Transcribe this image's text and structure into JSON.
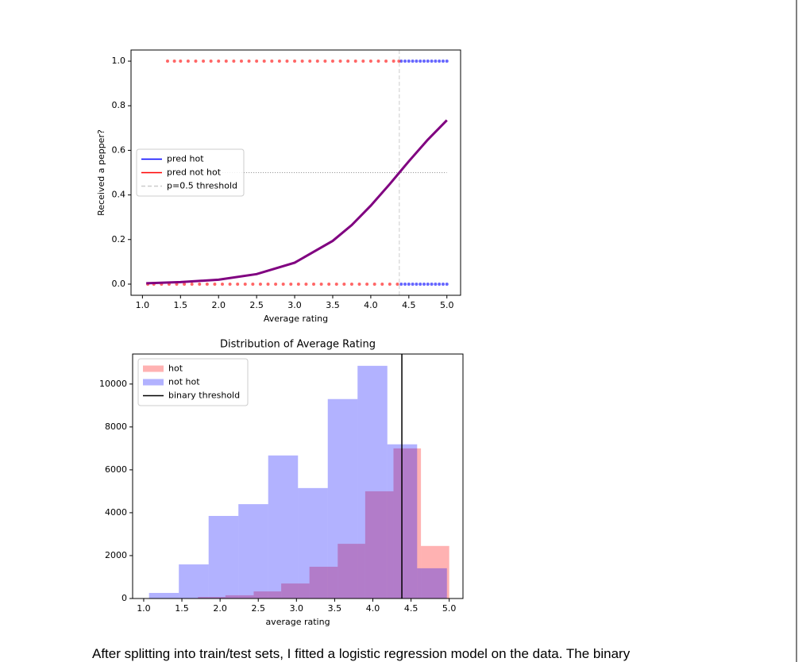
{
  "chart_data": [
    {
      "type": "scatter",
      "xlabel": "Average rating",
      "ylabel": "Received a pepper?",
      "xlim": [
        0.85,
        5.18
      ],
      "ylim": [
        -0.05,
        1.05
      ],
      "xticks": [
        {
          "value": 1,
          "label": "1.0"
        },
        1.5,
        {
          "value": 2,
          "label": "2.0"
        },
        2.5,
        {
          "value": 3,
          "label": "3.0"
        },
        3.5,
        {
          "value": 4,
          "label": "4.0"
        },
        4.5,
        {
          "value": 5,
          "label": "5.0"
        }
      ],
      "yticks": [
        {
          "value": 0,
          "label": "0.0"
        },
        0.2,
        0.4,
        0.6,
        0.8,
        {
          "value": 1,
          "label": "1.0"
        }
      ],
      "legend": "center left",
      "series": [
        {
          "name": "pred hot",
          "color": "#0000ff",
          "x": [
            4.4,
            4.45,
            4.5,
            4.55,
            4.6,
            4.65,
            4.7,
            4.75,
            4.8,
            4.85,
            4.9,
            4.95,
            5.0,
            4.4,
            4.45,
            4.5,
            4.55,
            4.6,
            4.65,
            4.7,
            4.75,
            4.8,
            4.85,
            4.9,
            4.95,
            5.0
          ],
          "values": [
            1,
            1,
            1,
            1,
            1,
            1,
            1,
            1,
            1,
            1,
            1,
            1,
            1,
            0,
            0,
            0,
            0,
            0,
            0,
            0,
            0,
            0,
            0,
            0,
            0,
            0
          ]
        },
        {
          "name": "pred not hot",
          "color": "#ff0000",
          "x": [
            1.33,
            1.42,
            1.5,
            1.6,
            1.7,
            1.8,
            1.9,
            2.0,
            2.1,
            2.2,
            2.3,
            2.4,
            2.5,
            2.6,
            2.7,
            2.8,
            2.9,
            3.0,
            3.1,
            3.2,
            3.3,
            3.4,
            3.5,
            3.6,
            3.7,
            3.8,
            3.9,
            4.0,
            4.1,
            4.2,
            4.3,
            4.37,
            1.07,
            1.15,
            1.25,
            1.35,
            1.45,
            1.55,
            1.65,
            1.75,
            1.85,
            1.95,
            2.05,
            2.15,
            2.25,
            2.35,
            2.45,
            2.55,
            2.65,
            2.75,
            2.85,
            2.95,
            3.05,
            3.15,
            3.25,
            3.35,
            3.45,
            3.55,
            3.65,
            3.75,
            3.85,
            3.95,
            4.05,
            4.15,
            4.25,
            4.35
          ],
          "values": [
            1,
            1,
            1,
            1,
            1,
            1,
            1,
            1,
            1,
            1,
            1,
            1,
            1,
            1,
            1,
            1,
            1,
            1,
            1,
            1,
            1,
            1,
            1,
            1,
            1,
            1,
            1,
            1,
            1,
            1,
            1,
            1,
            0,
            0,
            0,
            0,
            0,
            0,
            0,
            0,
            0,
            0,
            0,
            0,
            0,
            0,
            0,
            0,
            0,
            0,
            0,
            0,
            0,
            0,
            0,
            0,
            0,
            0,
            0,
            0,
            0,
            0,
            0,
            0,
            0,
            0
          ]
        }
      ],
      "curve": {
        "color": "#800080",
        "x": [
          1.05,
          1.5,
          2.0,
          2.5,
          3.0,
          3.5,
          3.75,
          4.0,
          4.25,
          4.375,
          4.5,
          4.75,
          5.0
        ],
        "values": [
          0.004,
          0.009,
          0.02,
          0.045,
          0.096,
          0.194,
          0.265,
          0.352,
          0.449,
          0.5,
          0.551,
          0.648,
          0.735
        ]
      },
      "hline": {
        "value": 0.5,
        "color": "#888888",
        "linestyle": "dotted"
      },
      "threshold": {
        "name": "p=0.5 threshold",
        "value": 4.375,
        "color": "#cccccc",
        "linestyle": "dashed"
      }
    },
    {
      "type": "histogram",
      "title": "Distribution of Average Rating",
      "xlabel": "average rating",
      "xlim": [
        0.855,
        5.18
      ],
      "ylim": [
        0,
        11400
      ],
      "xticks": [
        {
          "value": 1,
          "label": "1.0"
        },
        1.5,
        {
          "value": 2,
          "label": "2.0"
        },
        2.5,
        {
          "value": 3,
          "label": "3.0"
        },
        3.5,
        {
          "value": 4,
          "label": "4.0"
        },
        4.5,
        {
          "value": 5,
          "label": "5.0"
        }
      ],
      "yticks": [
        0,
        2000,
        4000,
        6000,
        8000,
        10000
      ],
      "legend": "upper left",
      "alpha": 0.3,
      "series": [
        {
          "name": "hot",
          "color": "#ff0000",
          "bins": [
            1.34,
            1.71,
            2.07,
            2.44,
            2.8,
            3.17,
            3.54,
            3.9,
            4.27,
            4.63,
            5.0
          ],
          "values": [
            20,
            70,
            150,
            330,
            700,
            1480,
            2550,
            5000,
            7000,
            2450
          ]
        },
        {
          "name": "not hot",
          "color": "#0000ff",
          "bins": [
            1.07,
            1.46,
            1.85,
            2.24,
            2.63,
            3.02,
            3.41,
            3.8,
            4.19,
            4.58,
            4.97
          ],
          "values": [
            260,
            1590,
            3850,
            4400,
            6670,
            5150,
            9300,
            10850,
            7190,
            1410
          ]
        }
      ],
      "threshold": {
        "name": "binary threshold",
        "value": 4.38,
        "color": "#000000",
        "linestyle": "solid"
      }
    }
  ],
  "paragraph": "After splitting into train/test sets, I fitted a logistic regression model on the data. The binary"
}
